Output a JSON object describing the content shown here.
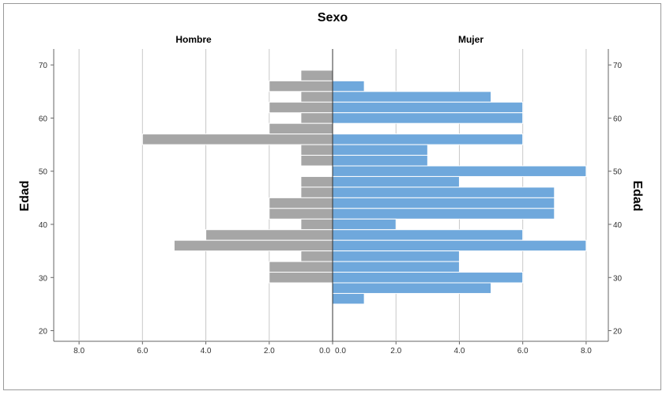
{
  "chart_data": {
    "type": "bar",
    "orientation": "horizontal",
    "title": "Sexo",
    "ylabel": "Edad",
    "y_ticks": [
      20,
      30,
      40,
      50,
      60,
      70
    ],
    "ylim": [
      18,
      73
    ],
    "x_ticks_left": [
      "8.0",
      "6.0",
      "4.0",
      "2.0",
      "0.0"
    ],
    "x_ticks_right": [
      "0.0",
      "2.0",
      "4.0",
      "6.0",
      "8.0"
    ],
    "xlim": [
      0,
      8.8
    ],
    "grid": true,
    "colors": {
      "Hombre": "#a6a6a6",
      "Mujer": "#6fa8dc"
    },
    "series": [
      {
        "name": "Hombre",
        "side": "left",
        "bars": [
          {
            "age": 68,
            "value": 1
          },
          {
            "age": 66,
            "value": 2
          },
          {
            "age": 64,
            "value": 1
          },
          {
            "age": 62,
            "value": 2
          },
          {
            "age": 60,
            "value": 1
          },
          {
            "age": 58,
            "value": 2
          },
          {
            "age": 56,
            "value": 6
          },
          {
            "age": 54,
            "value": 1
          },
          {
            "age": 52,
            "value": 1
          },
          {
            "age": 48,
            "value": 1
          },
          {
            "age": 46,
            "value": 1
          },
          {
            "age": 44,
            "value": 2
          },
          {
            "age": 42,
            "value": 2
          },
          {
            "age": 40,
            "value": 1
          },
          {
            "age": 38,
            "value": 4
          },
          {
            "age": 36,
            "value": 5
          },
          {
            "age": 34,
            "value": 1
          },
          {
            "age": 32,
            "value": 2
          },
          {
            "age": 30,
            "value": 2
          }
        ]
      },
      {
        "name": "Mujer",
        "side": "right",
        "bars": [
          {
            "age": 66,
            "value": 1
          },
          {
            "age": 64,
            "value": 5
          },
          {
            "age": 62,
            "value": 6
          },
          {
            "age": 60,
            "value": 6
          },
          {
            "age": 56,
            "value": 6
          },
          {
            "age": 54,
            "value": 3
          },
          {
            "age": 52,
            "value": 3
          },
          {
            "age": 50,
            "value": 8
          },
          {
            "age": 48,
            "value": 4
          },
          {
            "age": 46,
            "value": 7
          },
          {
            "age": 44,
            "value": 7
          },
          {
            "age": 42,
            "value": 7
          },
          {
            "age": 40,
            "value": 2
          },
          {
            "age": 38,
            "value": 6
          },
          {
            "age": 36,
            "value": 8
          },
          {
            "age": 34,
            "value": 4
          },
          {
            "age": 32,
            "value": 4
          },
          {
            "age": 30,
            "value": 6
          },
          {
            "age": 28,
            "value": 5
          },
          {
            "age": 26,
            "value": 1
          }
        ]
      }
    ]
  }
}
